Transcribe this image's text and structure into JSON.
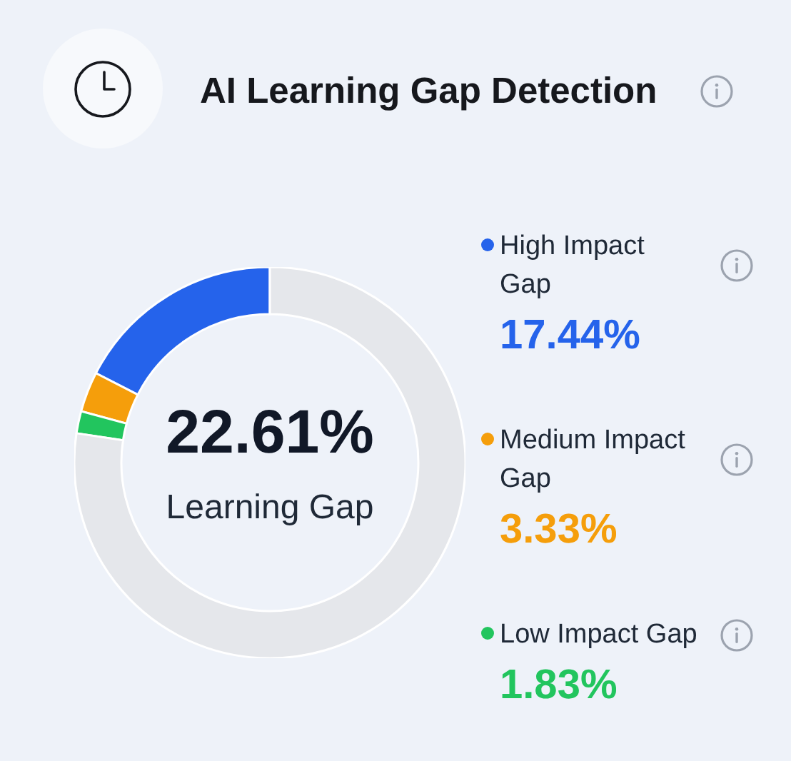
{
  "chart_data": {
    "type": "donut",
    "title": "AI Learning Gap Detection",
    "categories": [
      "High Impact Gap",
      "Medium Impact Gap",
      "Low Impact Gap",
      null
    ],
    "values": [
      17.44,
      3.33,
      1.83,
      77.39
    ],
    "colors": [
      "#2563eb",
      "#f59e0b",
      "#22c55e",
      "#e5e7eb"
    ],
    "value_labels": [
      "17.44%",
      "3.33%",
      "1.83%",
      null
    ],
    "annotations": [
      "22.61%",
      "Learning Gap"
    ],
    "legend": "right"
  }
}
